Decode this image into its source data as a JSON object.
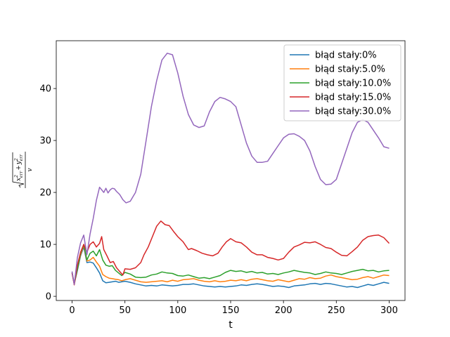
{
  "chart_data": {
    "type": "line",
    "title": "",
    "xlabel": "t",
    "ylabel": {
      "x_symbol": "x",
      "y_symbol": "y",
      "err_subscript": "err",
      "exponent": "2",
      "plus": "+",
      "denominator": "v"
    },
    "xlim": [
      -15,
      315
    ],
    "ylim": [
      -0.8,
      49.2
    ],
    "xticks": [
      0,
      50,
      100,
      150,
      200,
      250,
      300
    ],
    "yticks": [
      0,
      10,
      20,
      30,
      40
    ],
    "legend_position": "top-right",
    "grid": false,
    "series": [
      {
        "name": "błąd stały:0%",
        "color": "#1f77b4",
        "x": [
          0,
          2,
          5,
          8,
          11,
          14,
          17,
          20,
          23,
          26,
          29,
          32,
          35,
          38,
          41,
          44,
          47,
          50,
          55,
          60,
          65,
          70,
          75,
          80,
          85,
          90,
          95,
          100,
          105,
          110,
          115,
          120,
          125,
          130,
          135,
          140,
          145,
          150,
          155,
          160,
          165,
          170,
          175,
          180,
          185,
          190,
          195,
          200,
          205,
          210,
          215,
          220,
          225,
          230,
          235,
          240,
          245,
          250,
          255,
          260,
          265,
          270,
          275,
          280,
          285,
          290,
          295,
          300
        ],
        "values": [
          4.5,
          2.5,
          5.0,
          7.8,
          9.5,
          6.5,
          6.6,
          6.4,
          5.5,
          4.5,
          3.0,
          2.6,
          2.7,
          2.8,
          2.9,
          2.7,
          2.8,
          2.9,
          2.7,
          2.4,
          2.2,
          2.0,
          2.1,
          2.0,
          2.2,
          2.1,
          2.0,
          2.1,
          2.3,
          2.3,
          2.4,
          2.2,
          2.0,
          1.9,
          1.8,
          1.9,
          1.8,
          1.9,
          2.0,
          2.2,
          2.1,
          2.3,
          2.4,
          2.3,
          2.1,
          1.9,
          2.0,
          1.9,
          1.7,
          2.0,
          2.1,
          2.2,
          2.4,
          2.5,
          2.3,
          2.5,
          2.4,
          2.2,
          2.0,
          1.8,
          1.9,
          1.7,
          2.0,
          2.3,
          2.1,
          2.4,
          2.7,
          2.5
        ]
      },
      {
        "name": "błąd stały:5.0%",
        "color": "#ff7f0e",
        "x": [
          0,
          2,
          5,
          8,
          11,
          14,
          17,
          20,
          23,
          26,
          29,
          32,
          35,
          38,
          41,
          44,
          47,
          50,
          55,
          60,
          65,
          70,
          75,
          80,
          85,
          90,
          95,
          100,
          105,
          110,
          115,
          120,
          125,
          130,
          135,
          140,
          145,
          150,
          155,
          160,
          165,
          170,
          175,
          180,
          185,
          190,
          195,
          200,
          205,
          210,
          215,
          220,
          225,
          230,
          235,
          240,
          245,
          250,
          255,
          260,
          265,
          270,
          275,
          280,
          285,
          290,
          295,
          300
        ],
        "values": [
          4.5,
          2.3,
          5.3,
          8.0,
          9.8,
          6.8,
          7.0,
          7.5,
          6.6,
          5.8,
          4.2,
          3.8,
          3.5,
          3.4,
          3.3,
          3.2,
          3.0,
          3.2,
          3.4,
          3.1,
          2.8,
          2.7,
          2.8,
          2.9,
          3.0,
          2.8,
          3.1,
          2.9,
          3.2,
          3.3,
          3.4,
          3.1,
          2.9,
          2.8,
          3.0,
          2.8,
          2.9,
          3.1,
          3.0,
          3.2,
          3.0,
          3.3,
          3.4,
          3.2,
          3.0,
          2.9,
          3.2,
          3.0,
          2.8,
          3.1,
          3.4,
          3.3,
          3.6,
          3.4,
          3.5,
          3.9,
          4.1,
          3.8,
          3.6,
          3.4,
          3.2,
          3.3,
          3.6,
          3.8,
          3.5,
          3.8,
          4.1,
          4.0
        ]
      },
      {
        "name": "błąd stały:10.0%",
        "color": "#2ca02c",
        "x": [
          0,
          2,
          5,
          8,
          11,
          14,
          17,
          20,
          23,
          26,
          29,
          32,
          35,
          38,
          41,
          44,
          47,
          50,
          55,
          60,
          65,
          70,
          75,
          80,
          85,
          90,
          95,
          100,
          105,
          110,
          115,
          120,
          125,
          130,
          135,
          140,
          145,
          150,
          155,
          160,
          165,
          170,
          175,
          180,
          185,
          190,
          195,
          200,
          205,
          210,
          215,
          220,
          225,
          230,
          235,
          240,
          245,
          250,
          255,
          260,
          265,
          270,
          275,
          280,
          285,
          290,
          295,
          300
        ],
        "values": [
          4.6,
          2.4,
          5.2,
          8.3,
          10.0,
          7.0,
          8.3,
          8.7,
          7.8,
          9.0,
          7.0,
          6.0,
          5.8,
          5.9,
          5.0,
          4.5,
          4.0,
          4.6,
          4.3,
          3.7,
          3.6,
          3.7,
          4.1,
          4.3,
          4.7,
          4.5,
          4.4,
          4.0,
          3.9,
          4.1,
          3.8,
          3.5,
          3.6,
          3.4,
          3.7,
          4.0,
          4.6,
          5.0,
          4.8,
          4.9,
          4.6,
          4.8,
          4.5,
          4.6,
          4.3,
          4.4,
          4.2,
          4.5,
          4.7,
          5.0,
          4.8,
          4.6,
          4.5,
          4.2,
          4.4,
          4.7,
          4.5,
          4.4,
          4.2,
          4.5,
          4.8,
          5.0,
          5.2,
          4.9,
          5.0,
          4.7,
          4.9,
          5.0
        ]
      },
      {
        "name": "błąd stały:15.0%",
        "color": "#d62728",
        "x": [
          0,
          2,
          5,
          8,
          11,
          14,
          17,
          20,
          23,
          26,
          28,
          30,
          33,
          36,
          39,
          42,
          45,
          48,
          50,
          55,
          60,
          65,
          68,
          72,
          76,
          80,
          84,
          88,
          92,
          96,
          100,
          105,
          110,
          113,
          118,
          123,
          128,
          133,
          138,
          142,
          146,
          150,
          155,
          160,
          165,
          170,
          175,
          180,
          185,
          190,
          195,
          200,
          205,
          210,
          215,
          220,
          225,
          230,
          235,
          240,
          245,
          250,
          255,
          260,
          265,
          270,
          275,
          280,
          285,
          290,
          295,
          300
        ],
        "values": [
          4.5,
          2.2,
          6.0,
          8.5,
          10.0,
          8.5,
          10.0,
          10.5,
          9.5,
          10.2,
          11.5,
          9.0,
          7.8,
          6.5,
          6.7,
          5.5,
          4.8,
          4.1,
          5.3,
          5.2,
          5.5,
          6.5,
          8.0,
          9.5,
          11.5,
          13.5,
          14.5,
          13.8,
          13.6,
          12.5,
          11.5,
          10.5,
          9.0,
          9.2,
          8.8,
          8.3,
          8.0,
          7.8,
          8.3,
          9.5,
          10.5,
          11.1,
          10.5,
          10.3,
          9.5,
          8.5,
          8.0,
          8.0,
          7.5,
          7.3,
          7.0,
          7.3,
          8.5,
          9.5,
          9.9,
          10.4,
          10.3,
          10.5,
          10.0,
          9.4,
          9.2,
          8.5,
          7.9,
          7.8,
          8.6,
          9.5,
          10.8,
          11.5,
          11.7,
          11.8,
          11.3,
          10.2
        ]
      },
      {
        "name": "błąd stały:30.0%",
        "color": "#9467bd",
        "x": [
          0,
          2,
          5,
          8,
          11,
          14,
          17,
          20,
          23,
          26,
          28,
          30,
          32,
          34,
          36,
          38,
          40,
          42,
          45,
          48,
          51,
          55,
          60,
          65,
          70,
          75,
          80,
          85,
          90,
          95,
          100,
          105,
          110,
          115,
          120,
          125,
          130,
          135,
          140,
          145,
          150,
          155,
          160,
          165,
          170,
          175,
          180,
          185,
          190,
          195,
          200,
          205,
          210,
          215,
          220,
          225,
          230,
          235,
          240,
          245,
          250,
          255,
          260,
          265,
          270,
          275,
          280,
          285,
          290,
          295,
          300
        ],
        "values": [
          4.8,
          2.3,
          7.5,
          10.3,
          11.8,
          8.0,
          12.0,
          15.0,
          18.5,
          21.0,
          20.5,
          20.0,
          20.8,
          19.9,
          20.5,
          20.8,
          20.7,
          20.2,
          19.6,
          18.6,
          18.0,
          18.3,
          20.0,
          23.5,
          30.0,
          36.5,
          41.5,
          45.5,
          46.8,
          46.5,
          43.0,
          38.5,
          35.0,
          33.0,
          32.5,
          32.8,
          35.5,
          37.5,
          38.3,
          38.0,
          37.5,
          36.5,
          33.0,
          29.5,
          27.0,
          25.8,
          25.8,
          26.0,
          27.5,
          29.0,
          30.5,
          31.2,
          31.3,
          30.8,
          30.0,
          28.0,
          25.0,
          22.5,
          21.5,
          21.6,
          22.5,
          25.5,
          28.5,
          31.5,
          33.5,
          34.0,
          33.5,
          32.0,
          30.5,
          28.8,
          28.5
        ]
      }
    ]
  }
}
